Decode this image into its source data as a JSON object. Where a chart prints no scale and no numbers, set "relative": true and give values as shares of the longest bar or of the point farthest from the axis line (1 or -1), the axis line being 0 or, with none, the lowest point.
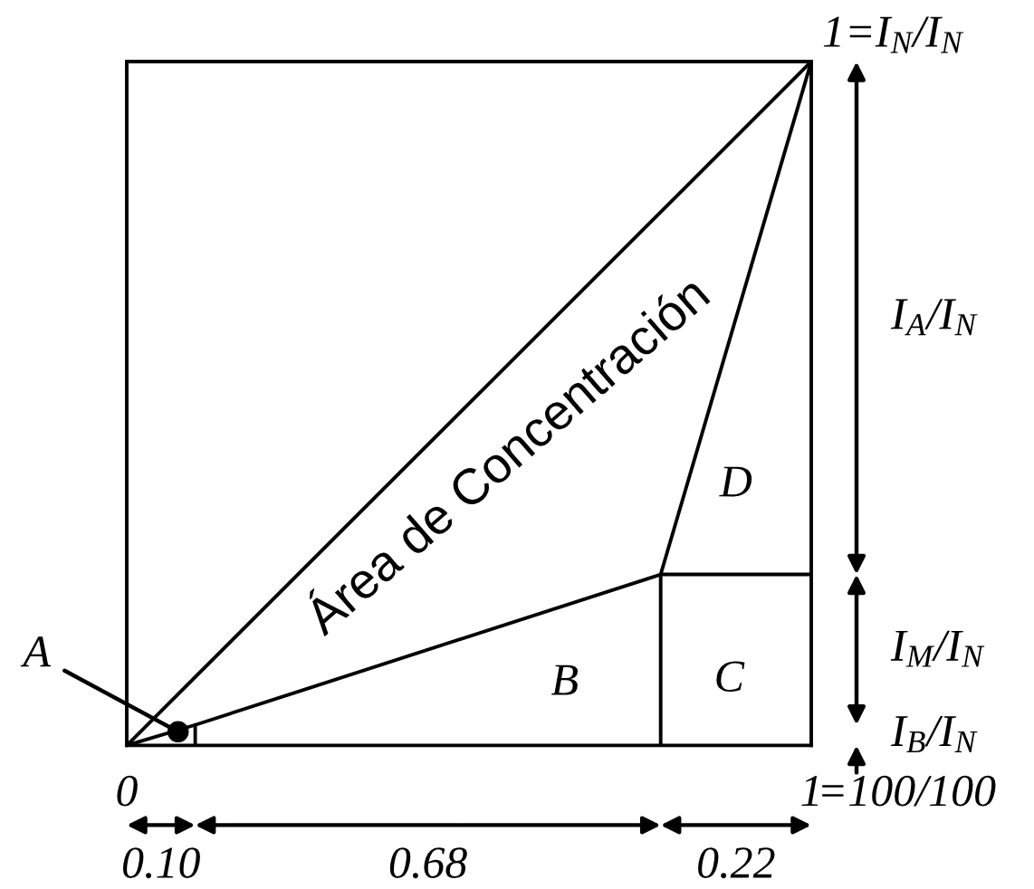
{
  "chart_data": {
    "type": "line",
    "relative": true,
    "xlim": [
      0,
      1
    ],
    "xticks": [
      0,
      1
    ],
    "tick_labels": "x",
    "series": [
      {
        "color": "#000000",
        "x": [
          0,
          1
        ],
        "values": [
          0,
          1
        ]
      },
      {
        "color": "#000000",
        "x": [
          0,
          0.1,
          0.78,
          1
        ],
        "values": [
          0,
          0.03,
          0.25,
          1
        ]
      },
      {
        "color": "#000000",
        "x": [
          0.1,
          0.1
        ],
        "values": [
          0,
          0.03
        ]
      },
      {
        "color": "#000000",
        "x": [
          0.78,
          0.78
        ],
        "values": [
          0,
          0.25
        ]
      },
      {
        "color": "#000000",
        "x": [
          0.78,
          1
        ],
        "values": [
          0.25,
          0.25
        ]
      }
    ],
    "annotations": [
      "Área de Concentración",
      {
        "text": "A",
        "x": 0.075,
        "y": 0.02
      },
      "B",
      "C",
      "D",
      {
        "text": "1=I$_{N}$/I$_{N}$",
        "x": 1,
        "y": 1
      },
      "=100/100",
      "0.10",
      "0.68",
      "0.22",
      "I$_{A}$/I$_{N}$",
      "I$_{M}$/I$_{N}$",
      "I$_{B}$/I$_{N}$"
    ]
  }
}
